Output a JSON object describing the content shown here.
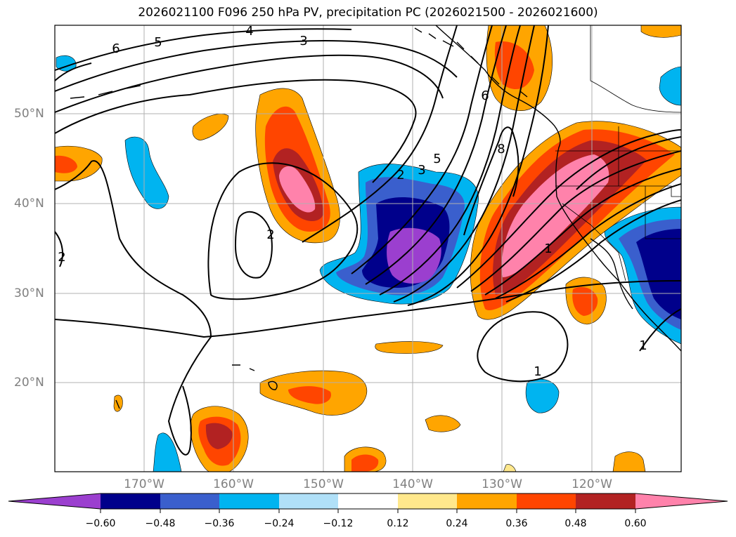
{
  "title": "2026021100 F096 250 hPa PV, precipitation PC (2026021500 - 2026021600)",
  "lat_labels": [
    "50°N",
    "40°N",
    "30°N",
    "20°N"
  ],
  "lon_labels": [
    "170°W",
    "160°W",
    "150°W",
    "140°W",
    "130°W",
    "120°W"
  ],
  "contour_labels": [
    "6",
    "5",
    "4",
    "3",
    "2",
    "2",
    "3",
    "5",
    "6",
    "8",
    "1",
    "1",
    "1",
    "2"
  ],
  "colorbar": {
    "ticks": [
      "−0.60",
      "−0.48",
      "−0.36",
      "−0.24",
      "−0.12",
      "0.12",
      "0.24",
      "0.36",
      "0.48",
      "0.60"
    ],
    "colors": [
      "#9b3fcf",
      "#00008b",
      "#3a5fcd",
      "#00b4f0",
      "#b0e0f8",
      "#ffffff",
      "#ffe88c",
      "#ffa500",
      "#ff4500",
      "#b22222",
      "#ff82ab"
    ]
  }
}
